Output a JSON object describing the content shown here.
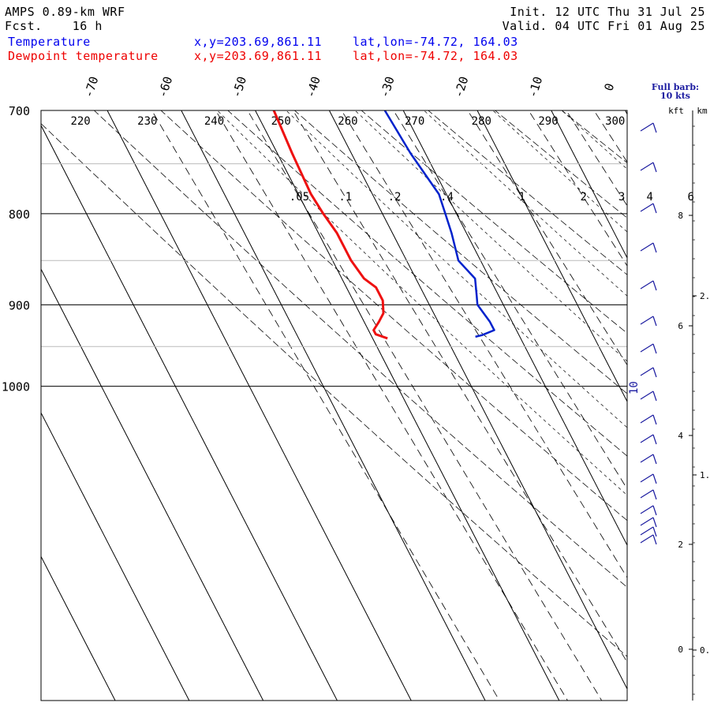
{
  "header": {
    "model": "AMPS 0.89-km WRF",
    "forecast": "Fcst.    16 h",
    "init": "Init. 12 UTC Thu 31 Jul 25",
    "valid": "Valid. 04 UTC Fri 01 Aug 25",
    "temperature_label": "Temperature",
    "dewpoint_label": "Dewpoint temperature",
    "xy": "x,y=203.69,861.11",
    "latlon": "lat,lon=-74.72, 164.03"
  },
  "colors": {
    "temperature": "#0022cc",
    "dewpoint": "#ee1111",
    "background": "#ffffff"
  },
  "chart_data": {
    "type": "line",
    "diagram": "skew-T log-p",
    "pressure_range_hPa": [
      700,
      1040
    ],
    "pressure_levels": [
      700,
      800,
      900,
      1000
    ],
    "pressure_tick_labels": [
      "700",
      "800",
      "900",
      "1000"
    ],
    "minor_pressure_levels": [
      750,
      850,
      950
    ],
    "isotherms_C": [
      -70,
      -60,
      -50,
      -40,
      -30,
      -20,
      -10,
      0
    ],
    "isotherm_labels": [
      "-70",
      "-60",
      "-50",
      "-40",
      "-30",
      "-20",
      "-10",
      "0"
    ],
    "dry_adiabats_K": [
      220,
      230,
      240,
      250,
      260,
      270,
      280,
      290,
      300
    ],
    "dry_adiabat_labels": [
      "220",
      "230",
      "240",
      "250",
      "260",
      "270",
      "280",
      "290",
      "300"
    ],
    "mixing_ratio_labels": [
      ".05",
      ".1",
      ".2",
      ".4",
      "1",
      "2",
      "3",
      "4",
      "6"
    ],
    "series": [
      {
        "name": "Temperature",
        "p": [
          700,
          740,
          780,
          800,
          820,
          850,
          870,
          890,
          900,
          920,
          930,
          936,
          938
        ],
        "T": [
          -32.5,
          -32.0,
          -31.0,
          -31.5,
          -32.0,
          -33.0,
          -32.0,
          -33.0,
          -33.5,
          -33.0,
          -33.0,
          -35.0,
          -36.0
        ]
      },
      {
        "name": "Dewpoint temperature",
        "p": [
          700,
          740,
          780,
          800,
          820,
          850,
          870,
          880,
          895,
          910,
          920,
          930,
          935,
          940
        ],
        "Td": [
          -47.5,
          -48.0,
          -48.3,
          -48.0,
          -47.5,
          -47.5,
          -47.0,
          -46.0,
          -46.0,
          -46.8,
          -48.0,
          -49.3,
          -49.3,
          -48.0
        ]
      }
    ],
    "wind_barb_note": "Full barb:",
    "wind_barb_speed": "10 kts",
    "wind_speed_label": "10",
    "height_axis": {
      "kft_title": "kft",
      "km_title": "km",
      "kft_labels": [
        "8",
        "6",
        "4",
        "2",
        "0"
      ],
      "km_labels": [
        "2.",
        "1.",
        "0."
      ]
    }
  }
}
